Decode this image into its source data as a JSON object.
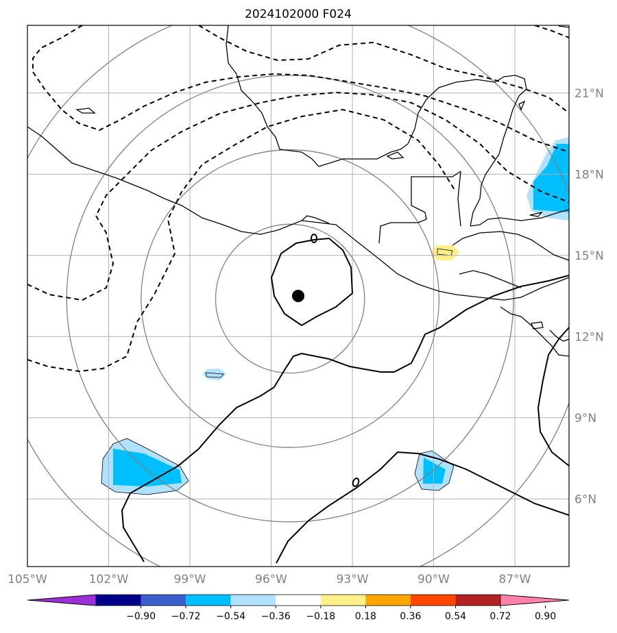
{
  "title": "2024102000 F024",
  "map": {
    "lon_range": [
      -105,
      -85
    ],
    "lat_range": [
      3.5,
      23.5
    ],
    "lon_ticks": [
      "105°W",
      "102°W",
      "99°W",
      "96°W",
      "93°W",
      "90°W",
      "87°W"
    ],
    "lon_tick_values": [
      -105,
      -102,
      -99,
      -96,
      -93,
      -90,
      -87
    ],
    "lat_ticks": [
      "21°N",
      "18°N",
      "15°N",
      "12°N",
      "9°N",
      "6°N"
    ],
    "lat_tick_values": [
      21,
      18,
      15,
      12,
      9,
      6
    ],
    "storm_center": {
      "lon": -95.3,
      "lat": 13.4
    },
    "range_rings_deg": [
      2.75,
      5.5,
      8.25,
      11
    ],
    "grid": true
  },
  "colorbar": {
    "labels": [
      "−0.90",
      "−0.72",
      "−0.54",
      "−0.36",
      "−0.18",
      "0.18",
      "0.36",
      "0.54",
      "0.72",
      "0.90"
    ],
    "colors": [
      "#9b30d9",
      "#00008b",
      "#3a5fcd",
      "#00bfff",
      "#b0e2ff",
      "#ffffff",
      "#fff08a",
      "#ffa500",
      "#ff4500",
      "#b22222",
      "#ff82ab"
    ]
  }
}
